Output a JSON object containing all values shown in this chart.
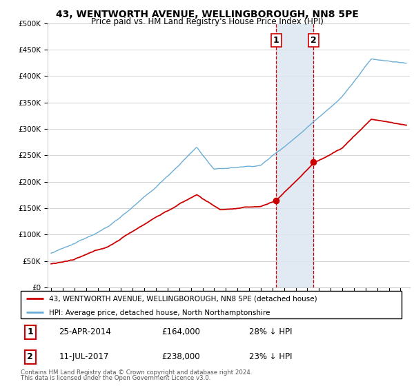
{
  "title": "43, WENTWORTH AVENUE, WELLINGBOROUGH, NN8 5PE",
  "subtitle": "Price paid vs. HM Land Registry's House Price Index (HPI)",
  "red_label": "43, WENTWORTH AVENUE, WELLINGBOROUGH, NN8 5PE (detached house)",
  "blue_label": "HPI: Average price, detached house, North Northamptonshire",
  "footnote1": "Contains HM Land Registry data © Crown copyright and database right 2024.",
  "footnote2": "This data is licensed under the Open Government Licence v3.0.",
  "annotation1": {
    "num": "1",
    "date": "25-APR-2014",
    "price": "£164,000",
    "pct": "28% ↓ HPI"
  },
  "annotation2": {
    "num": "2",
    "date": "11-JUL-2017",
    "price": "£238,000",
    "pct": "23% ↓ HPI"
  },
  "marker1_year": 2014.32,
  "marker1_price": 164000,
  "marker2_year": 2017.53,
  "marker2_price": 238000,
  "ylim": [
    0,
    500000
  ],
  "yticks": [
    0,
    50000,
    100000,
    150000,
    200000,
    250000,
    300000,
    350000,
    400000,
    450000,
    500000
  ],
  "ytick_labels": [
    "£0",
    "£50K",
    "£100K",
    "£150K",
    "£200K",
    "£250K",
    "£300K",
    "£350K",
    "£400K",
    "£450K",
    "£500K"
  ],
  "red_color": "#cc0000",
  "blue_color": "#6baed6",
  "marker_color": "#cc0000",
  "vline_color": "#cc0000",
  "shading_color": "#dce6f1",
  "grid_color": "#cccccc",
  "background_color": "#ffffff",
  "xlim_start": 1994.7,
  "xlim_end": 2025.8
}
